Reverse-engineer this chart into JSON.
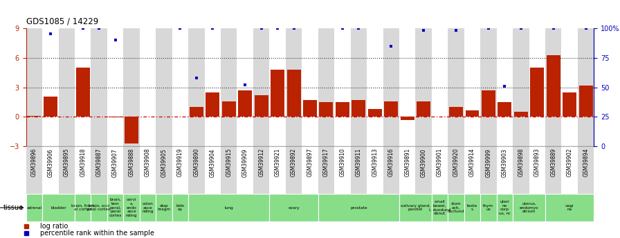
{
  "title": "GDS1085 / 14229",
  "samples": [
    "GSM39896",
    "GSM39906",
    "GSM39895",
    "GSM39918",
    "GSM39887",
    "GSM39907",
    "GSM39888",
    "GSM39908",
    "GSM39905",
    "GSM39919",
    "GSM39890",
    "GSM39904",
    "GSM39915",
    "GSM39909",
    "GSM39912",
    "GSM39921",
    "GSM39892",
    "GSM39897",
    "GSM39917",
    "GSM39910",
    "GSM39911",
    "GSM39913",
    "GSM39916",
    "GSM39891",
    "GSM39900",
    "GSM39901",
    "GSM39920",
    "GSM39914",
    "GSM39999",
    "GSM39903",
    "GSM39898",
    "GSM39893",
    "GSM39889",
    "GSM39902",
    "GSM39894"
  ],
  "log_ratio": [
    0.1,
    2.1,
    0.0,
    5.0,
    0.0,
    -0.05,
    -2.7,
    0.0,
    0.0,
    0.0,
    1.0,
    2.5,
    1.6,
    2.7,
    2.2,
    4.8,
    4.8,
    1.7,
    1.5,
    1.5,
    1.7,
    0.8,
    1.6,
    -0.3,
    1.6,
    0.05,
    1.0,
    0.7,
    2.7,
    1.5,
    0.5,
    5.0,
    6.3,
    2.5,
    3.2
  ],
  "blue_dots": {
    "1": 8.5,
    "3": 9.0,
    "4": 9.0,
    "5": 7.8,
    "9": 9.0,
    "10": 4.0,
    "11": 9.0,
    "13": 3.3,
    "14": 9.0,
    "15": 9.0,
    "16": 9.0,
    "19": 9.0,
    "20": 9.0,
    "22": 7.2,
    "24": 8.8,
    "26": 8.8,
    "28": 9.0,
    "29": 3.1,
    "30": 9.0,
    "32": 9.0,
    "34": 9.0
  },
  "tissue_groups": [
    {
      "label": "adrenal",
      "start": 0,
      "end": 0
    },
    {
      "label": "bladder",
      "start": 1,
      "end": 2
    },
    {
      "label": "brain, front\nal cortex",
      "start": 3,
      "end": 3
    },
    {
      "label": "brain, occi\npital cortex",
      "start": 4,
      "end": 4
    },
    {
      "label": "brain,\ntem\nporal,\nporal\ncortex",
      "start": 5,
      "end": 5
    },
    {
      "label": "cervi\nx,\nendo\nasce\nnding",
      "start": 6,
      "end": 6
    },
    {
      "label": "colon\nasce\nnding",
      "start": 7,
      "end": 7
    },
    {
      "label": "diap\nhragm",
      "start": 8,
      "end": 8
    },
    {
      "label": "kidn\ney",
      "start": 9,
      "end": 9
    },
    {
      "label": "lung",
      "start": 10,
      "end": 14
    },
    {
      "label": "ovary",
      "start": 15,
      "end": 17
    },
    {
      "label": "prostate",
      "start": 18,
      "end": 22
    },
    {
      "label": "salivary gland,\nparotid",
      "start": 23,
      "end": 24
    },
    {
      "label": "small\nbowel,\nI, duodund\ndenut",
      "start": 25,
      "end": 25
    },
    {
      "label": "stom\nach,\nductund",
      "start": 26,
      "end": 26
    },
    {
      "label": "teste\ns",
      "start": 27,
      "end": 27
    },
    {
      "label": "thym\nus",
      "start": 28,
      "end": 28
    },
    {
      "label": "uteri\nne\ncorp\nus, m",
      "start": 29,
      "end": 29
    },
    {
      "label": "uterus,\nendomyo\netrium",
      "start": 30,
      "end": 31
    },
    {
      "label": "vagi\nna",
      "start": 32,
      "end": 34
    }
  ],
  "ylim": [
    -3,
    9
  ],
  "yticks_left": [
    -3,
    0,
    3,
    6,
    9
  ],
  "right_ytick_pcts": [
    0,
    25,
    50,
    75,
    100
  ],
  "right_ytick_labels": [
    "0",
    "25",
    "50",
    "75",
    "100%"
  ],
  "bar_color": "#bb2200",
  "dot_color": "#0000bb",
  "hline_color": "#cc0000",
  "dotline_color": "#333333",
  "col_odd": "#d8d8d8",
  "col_even": "#ffffff",
  "tissue_color": "#88dd88",
  "tissue_white_color": "#ffffff"
}
